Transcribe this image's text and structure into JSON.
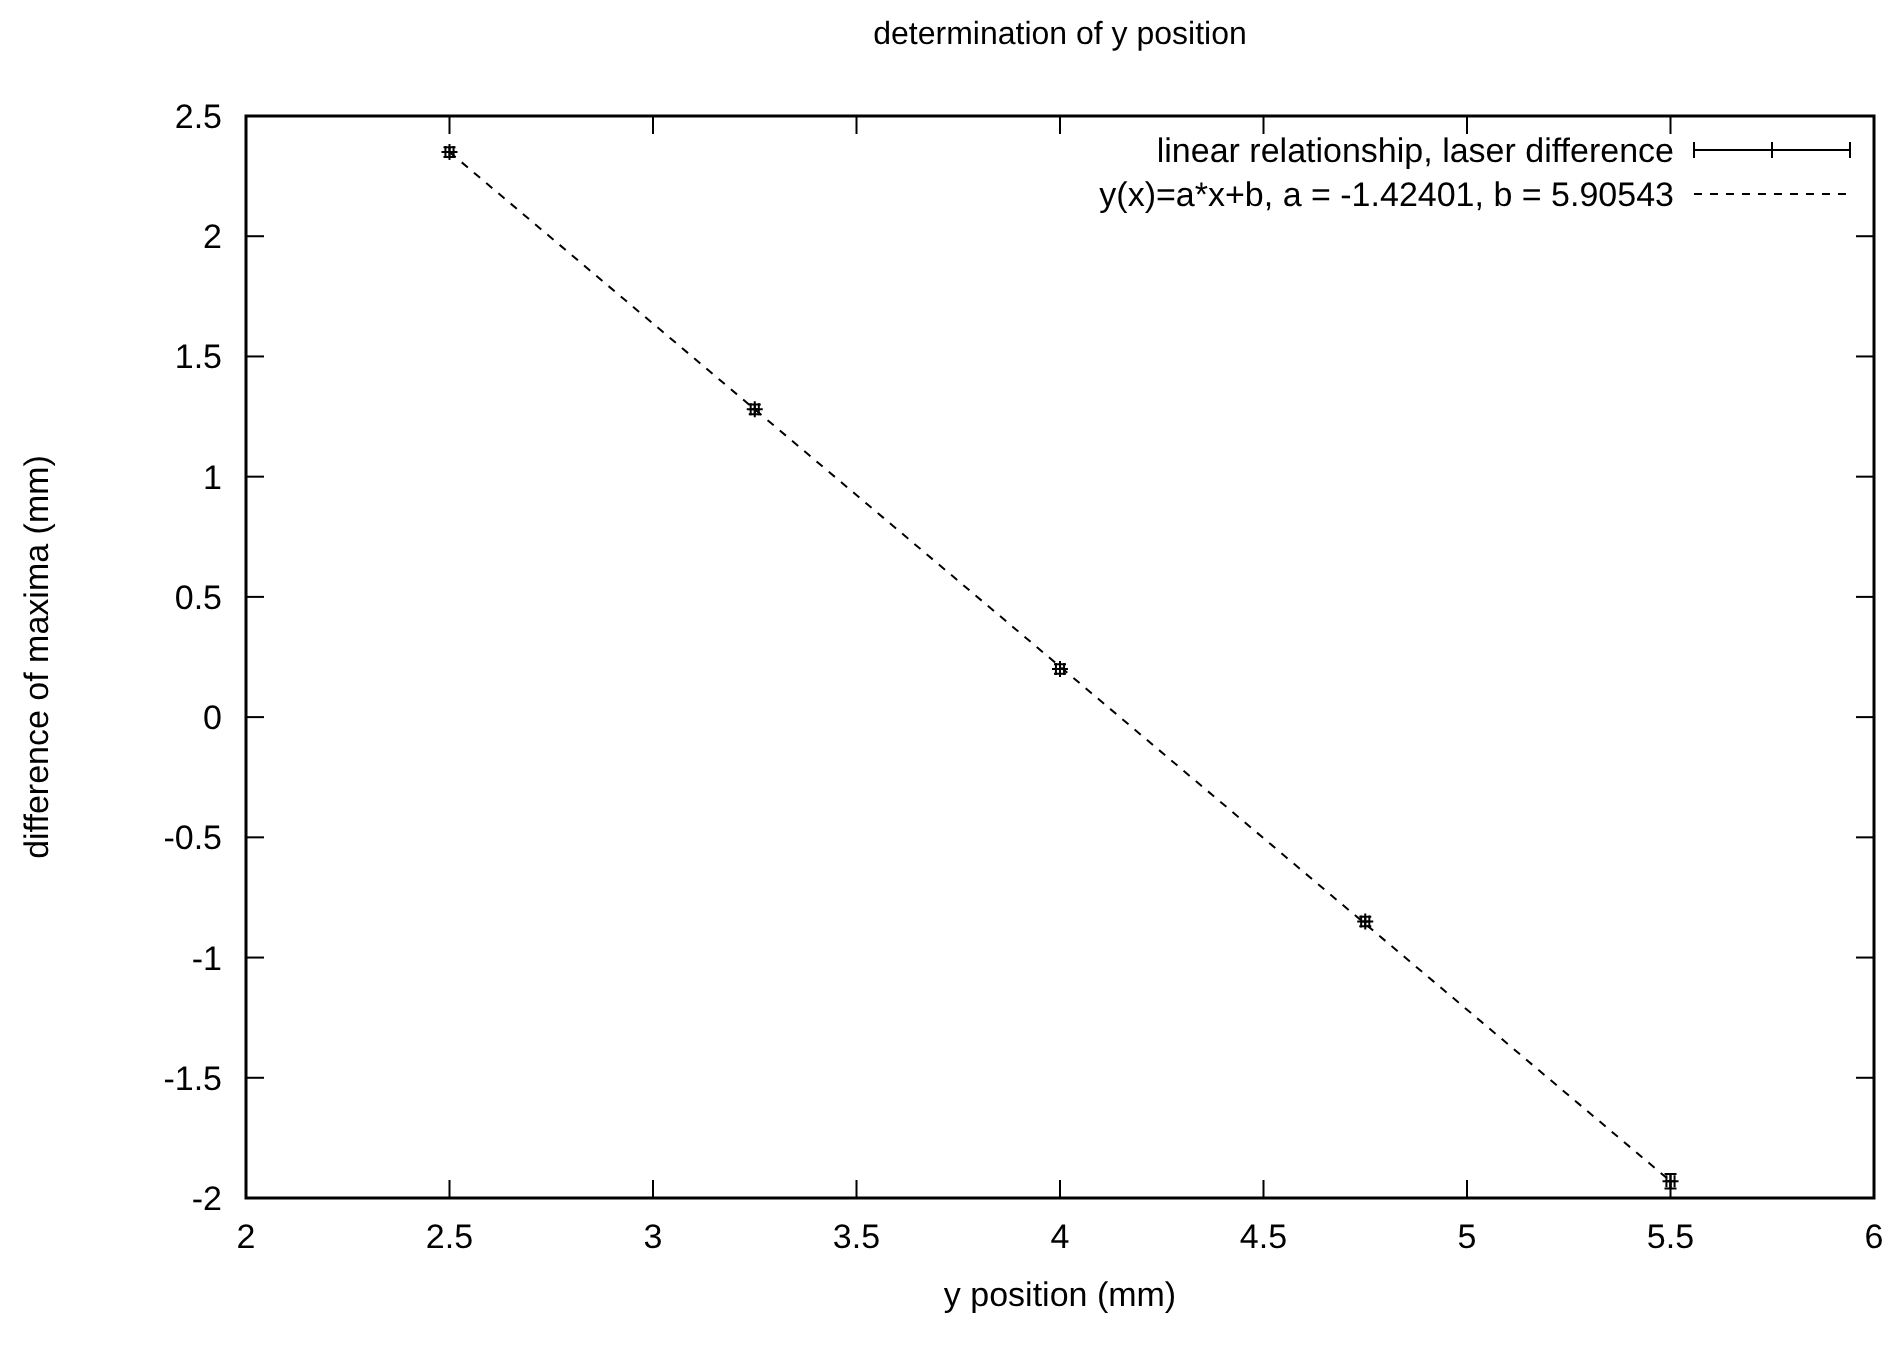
{
  "chart_data": {
    "type": "scatter",
    "title": "determination of y position",
    "xlabel": "y position (mm)",
    "ylabel": "difference of maxima (mm)",
    "xlim": [
      2,
      6
    ],
    "ylim": [
      -2,
      2.5
    ],
    "xticks": [
      2,
      2.5,
      3,
      3.5,
      4,
      4.5,
      5,
      5.5,
      6
    ],
    "yticks": [
      -2,
      -1.5,
      -1,
      -0.5,
      0,
      0.5,
      1,
      1.5,
      2,
      2.5
    ],
    "grid": false,
    "legend": "top right",
    "marker": "cross",
    "series": [
      {
        "name": "linear relationship, laser difference",
        "color": "#000000",
        "x": [
          2.5,
          3.25,
          4,
          4.75,
          5.5
        ],
        "values": [
          2.35,
          1.28,
          0.2,
          -0.85,
          -1.93
        ],
        "errors": [
          0.02,
          0.02,
          0.02,
          0.02,
          0.03
        ],
        "xerrors": [
          0.01,
          0.01,
          0.01,
          0.01,
          0.01
        ]
      },
      {
        "name": "y(x)=a*x+b, a = -1.42401, b = 5.90543",
        "type": "line",
        "color": "#000000",
        "line_style": "dashed",
        "x": [
          2.5,
          5.5
        ],
        "values": [
          2.35,
          -1.93
        ]
      }
    ]
  }
}
